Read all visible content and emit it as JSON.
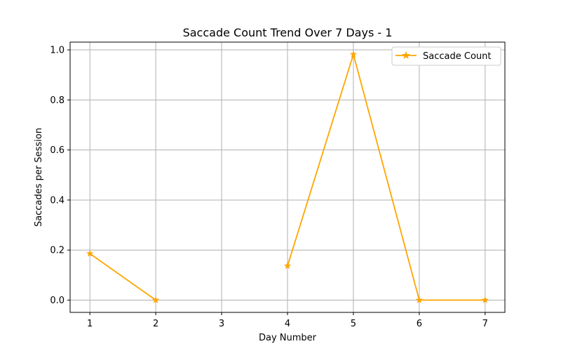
{
  "chart_data": {
    "type": "line",
    "title": "Saccade Count Trend Over 7 Days - 1",
    "xlabel": "Day Number",
    "ylabel": "Saccades per Session",
    "x": [
      1,
      2,
      3,
      4,
      5,
      6,
      7
    ],
    "series": [
      {
        "name": "Saccade Count",
        "values": [
          0.186,
          0.0,
          null,
          0.137,
          0.982,
          0.0,
          0.0
        ],
        "color": "#FFA500",
        "marker": "star"
      }
    ],
    "x_ticks": [
      "1",
      "2",
      "3",
      "4",
      "5",
      "6",
      "7"
    ],
    "y_ticks": [
      "0.0",
      "0.2",
      "0.4",
      "0.6",
      "0.8",
      "1.0"
    ],
    "y_tick_values": [
      0.0,
      0.2,
      0.4,
      0.6,
      0.8,
      1.0
    ],
    "xlim": [
      0.7,
      7.3
    ],
    "ylim": [
      -0.049,
      1.031
    ],
    "grid": true,
    "legend_position": "top-right"
  }
}
